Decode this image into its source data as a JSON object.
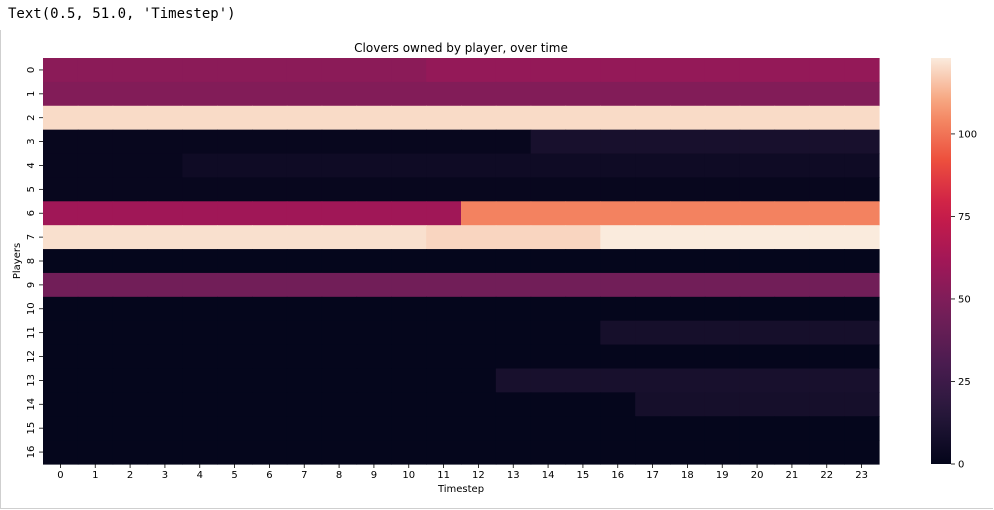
{
  "output": {
    "text": "Text(0.5, 51.0, 'Timestep')"
  },
  "chart_data": {
    "type": "heatmap",
    "title": "Clovers owned by player, over time",
    "xlabel": "Timestep",
    "ylabel": "Players",
    "x": [
      "0",
      "1",
      "2",
      "3",
      "4",
      "5",
      "6",
      "7",
      "8",
      "9",
      "10",
      "11",
      "12",
      "13",
      "14",
      "15",
      "16",
      "17",
      "18",
      "19",
      "20",
      "21",
      "22",
      "23"
    ],
    "y": [
      "0",
      "1",
      "2",
      "3",
      "4",
      "5",
      "6",
      "7",
      "8",
      "9",
      "10",
      "11",
      "12",
      "13",
      "14",
      "15",
      "16"
    ],
    "values": [
      [
        54,
        54,
        54,
        54,
        54,
        54,
        54,
        54,
        54,
        54,
        54,
        57,
        57,
        57,
        57,
        57,
        57,
        57,
        57,
        57,
        57,
        57,
        57,
        57
      ],
      [
        51,
        51,
        51,
        51,
        51,
        51,
        51,
        51,
        51,
        51,
        51,
        51,
        51,
        51,
        51,
        51,
        51,
        51,
        51,
        51,
        51,
        51,
        51,
        51
      ],
      [
        120,
        120,
        120,
        120,
        120,
        120,
        120,
        120,
        120,
        120,
        120,
        120,
        120,
        120,
        120,
        120,
        120,
        120,
        120,
        120,
        120,
        120,
        120,
        120
      ],
      [
        2,
        2,
        2,
        2,
        2,
        2,
        2,
        2,
        2,
        2,
        2,
        2,
        2,
        2,
        9,
        9,
        9,
        9,
        9,
        9,
        9,
        9,
        9,
        9
      ],
      [
        2,
        2,
        2,
        2,
        5,
        5,
        5,
        5,
        5,
        5,
        5,
        5,
        5,
        5,
        5,
        5,
        5,
        5,
        5,
        5,
        5,
        5,
        5,
        5
      ],
      [
        2,
        2,
        2,
        2,
        2,
        2,
        2,
        2,
        2,
        2,
        2,
        2,
        2,
        2,
        2,
        2,
        2,
        2,
        2,
        2,
        2,
        2,
        2,
        2
      ],
      [
        61,
        61,
        61,
        61,
        61,
        61,
        61,
        61,
        61,
        61,
        61,
        61,
        103,
        103,
        103,
        103,
        103,
        103,
        103,
        103,
        103,
        103,
        103,
        103
      ],
      [
        121,
        121,
        121,
        121,
        121,
        121,
        121,
        121,
        121,
        121,
        121,
        119,
        119,
        119,
        119,
        119,
        123,
        123,
        123,
        123,
        123,
        123,
        123,
        123
      ],
      [
        1,
        1,
        1,
        1,
        1,
        1,
        1,
        1,
        1,
        1,
        1,
        1,
        1,
        1,
        1,
        1,
        1,
        1,
        1,
        1,
        1,
        1,
        1,
        1
      ],
      [
        45,
        45,
        45,
        45,
        45,
        45,
        45,
        45,
        45,
        45,
        45,
        45,
        45,
        45,
        45,
        45,
        45,
        45,
        45,
        45,
        45,
        45,
        45,
        45
      ],
      [
        1,
        1,
        1,
        1,
        1,
        1,
        1,
        1,
        1,
        1,
        1,
        1,
        1,
        1,
        1,
        1,
        1,
        1,
        1,
        1,
        1,
        1,
        1,
        1
      ],
      [
        1,
        1,
        1,
        1,
        1,
        1,
        1,
        1,
        1,
        1,
        1,
        1,
        1,
        1,
        1,
        1,
        8,
        8,
        8,
        8,
        8,
        8,
        8,
        8
      ],
      [
        1,
        1,
        1,
        1,
        1,
        1,
        1,
        1,
        1,
        1,
        1,
        1,
        1,
        1,
        1,
        1,
        1,
        1,
        1,
        1,
        1,
        1,
        1,
        1
      ],
      [
        1,
        1,
        1,
        1,
        1,
        1,
        1,
        1,
        1,
        1,
        1,
        1,
        1,
        9,
        9,
        9,
        9,
        9,
        9,
        9,
        9,
        9,
        9,
        9
      ],
      [
        1,
        1,
        1,
        1,
        1,
        1,
        1,
        1,
        1,
        1,
        1,
        1,
        1,
        1,
        1,
        1,
        1,
        8,
        8,
        8,
        8,
        8,
        8,
        8
      ],
      [
        1,
        1,
        1,
        1,
        1,
        1,
        1,
        1,
        1,
        1,
        1,
        1,
        1,
        1,
        1,
        1,
        1,
        1,
        1,
        1,
        1,
        1,
        1,
        1
      ],
      [
        1,
        1,
        1,
        1,
        1,
        1,
        1,
        1,
        1,
        1,
        1,
        1,
        1,
        1,
        1,
        1,
        1,
        1,
        1,
        1,
        1,
        1,
        1,
        1
      ]
    ],
    "colormap": "rocket",
    "vmin": 0,
    "vmax": 123,
    "colorbar_ticks": [
      0,
      25,
      50,
      75,
      100
    ]
  }
}
